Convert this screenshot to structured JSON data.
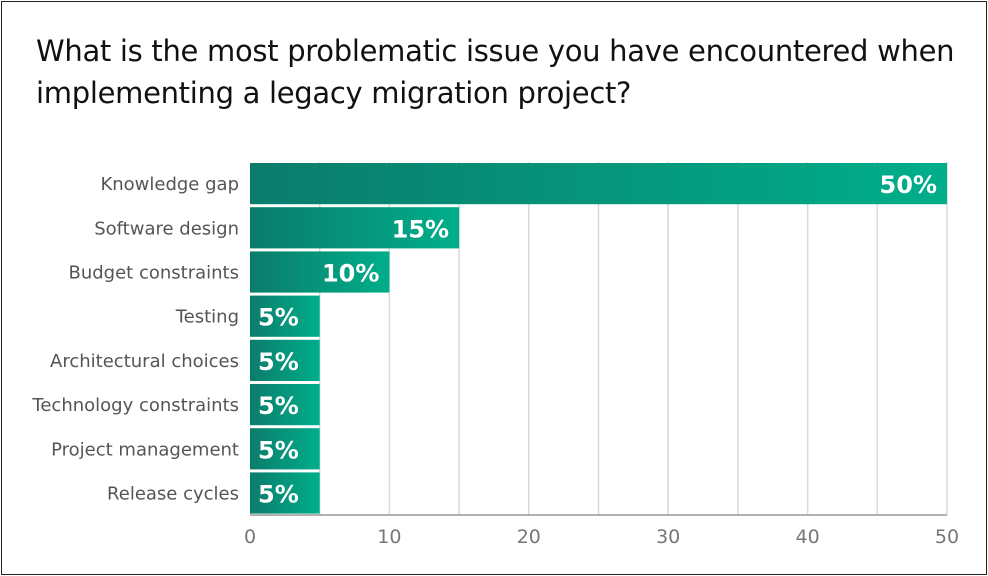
{
  "chart_data": {
    "type": "bar",
    "orientation": "horizontal",
    "title": "What is the most problematic issue you have encountered when implementing a legacy migration project?",
    "categories": [
      "Knowledge gap",
      "Software design",
      "Budget constraints",
      "Testing",
      "Architectural choices",
      "Technology constraints",
      "Project management",
      "Release cycles"
    ],
    "values": [
      50,
      15,
      10,
      5,
      5,
      5,
      5,
      5
    ],
    "data_labels": [
      "50%",
      "15%",
      "10%",
      "5%",
      "5%",
      "5%",
      "5%",
      "5%"
    ],
    "xlim": [
      0,
      50
    ],
    "xticks": [
      "0",
      "10",
      "20",
      "30",
      "40",
      "50"
    ],
    "grid": true,
    "colors": {
      "bar_start": "#0b7c6c",
      "bar_end": "#00ae8a",
      "grid": "#d9d9d9",
      "axis": "#999999"
    }
  }
}
